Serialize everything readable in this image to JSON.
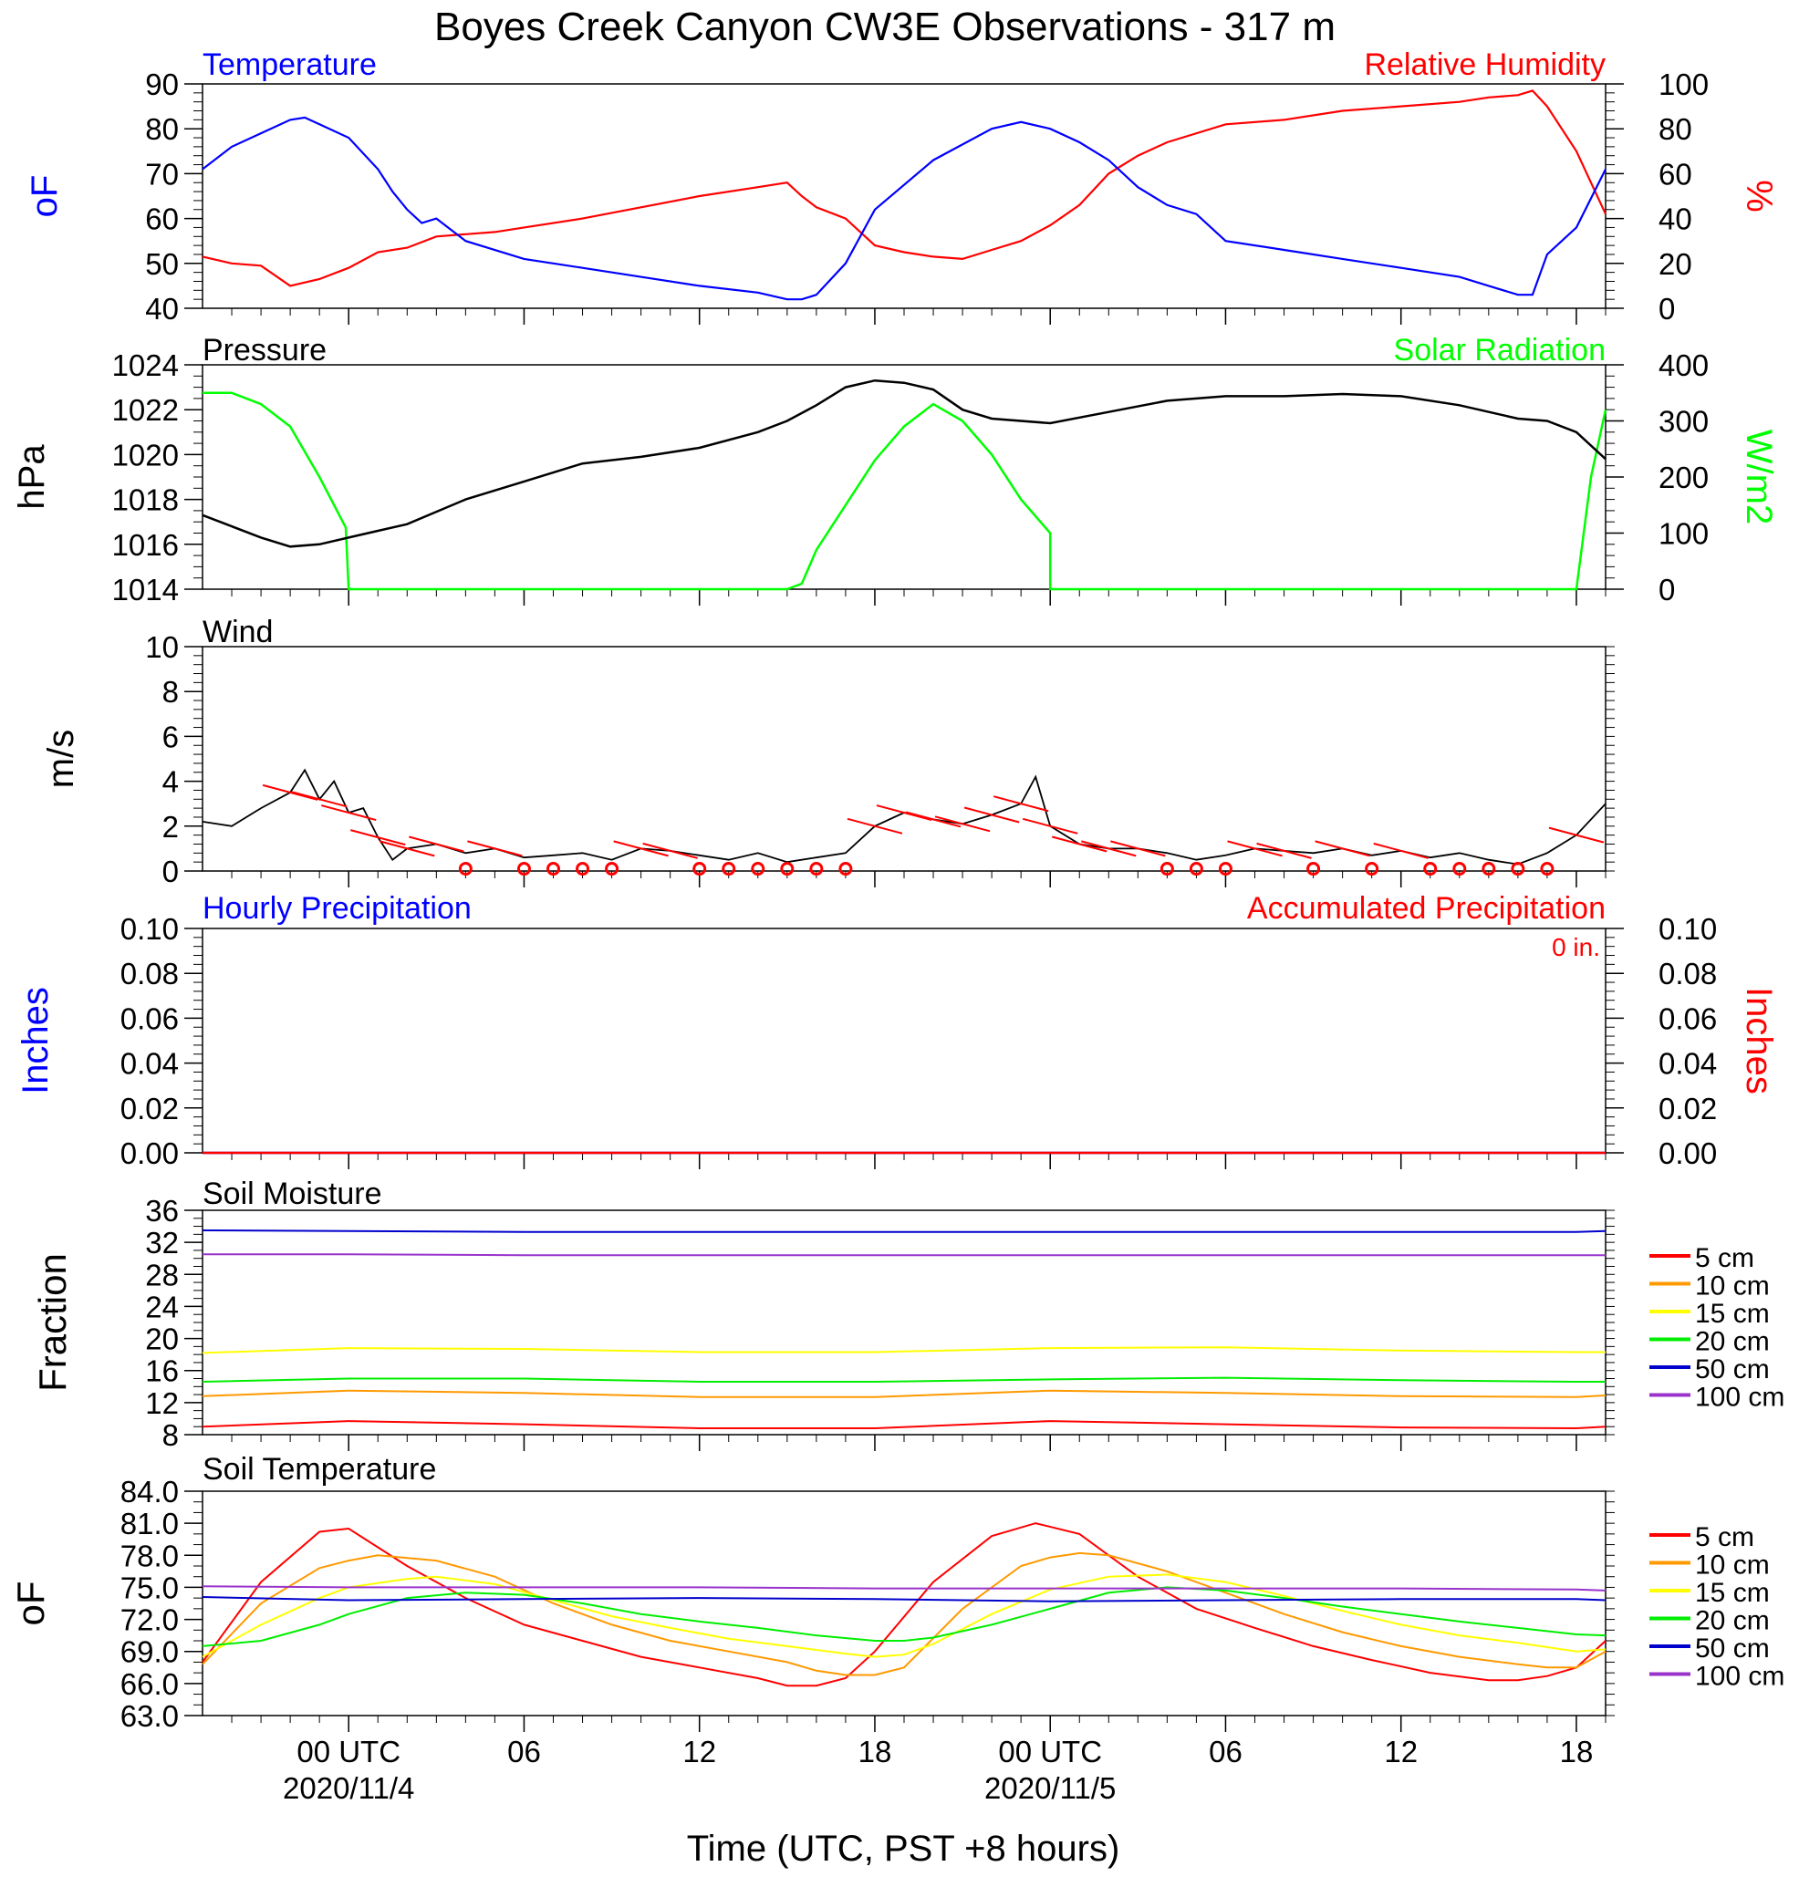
{
  "title": "Boyes Creek Canyon CW3E Observations - 317 m",
  "x_axis": {
    "label": "Time (UTC, PST +8 hours)",
    "ticks": [
      {
        "h": 0,
        "label": "00 UTC",
        "date": "2020/11/4"
      },
      {
        "h": 6,
        "label": "06",
        "date": ""
      },
      {
        "h": 12,
        "label": "12",
        "date": ""
      },
      {
        "h": 18,
        "label": "18",
        "date": ""
      },
      {
        "h": 24,
        "label": "00 UTC",
        "date": "2020/11/5"
      },
      {
        "h": 30,
        "label": "06",
        "date": ""
      },
      {
        "h": 36,
        "label": "12",
        "date": ""
      },
      {
        "h": 42,
        "label": "18",
        "date": ""
      }
    ],
    "range": [
      "2020/11/3 19 UTC",
      "2020/11/5 19 UTC"
    ]
  },
  "colors": {
    "temperature": "#0000ff",
    "humidity": "#ff0000",
    "pressure": "#000000",
    "solar": "#00ff00",
    "wind": "#000000",
    "wind_barb": "#ff0000",
    "hourly_precip": "#0000ff",
    "accum_precip": "#ff0000",
    "depth_5cm": "#ff0000",
    "depth_10cm": "#ff9900",
    "depth_15cm": "#ffff00",
    "depth_20cm": "#00ee00",
    "depth_50cm": "#0000cc",
    "depth_100cm": "#9933cc"
  },
  "chart_data": [
    {
      "type": "line",
      "panel": "temperature_humidity",
      "left_title": "Temperature",
      "right_title": "Relative Humidity",
      "left_unit": "oF",
      "right_unit": "%",
      "left_ticks": [
        "90",
        "80",
        "70",
        "60",
        "50",
        "40"
      ],
      "right_ticks": [
        "100",
        "80",
        "60",
        "40",
        "20",
        "0"
      ],
      "left_ylim": [
        40,
        90
      ],
      "right_ylim": [
        0,
        100
      ],
      "series": [
        {
          "name": "Temperature",
          "axis": "left",
          "x": [
            -5,
            -4,
            -3,
            -2,
            -1.5,
            -1,
            0,
            1,
            1.5,
            2,
            2.5,
            3,
            4,
            6,
            8,
            10,
            12,
            14,
            15,
            15.5,
            16,
            17,
            18,
            20,
            22,
            23,
            24,
            25,
            26,
            27,
            28,
            29,
            30,
            32,
            34,
            36,
            38,
            39,
            40,
            40.5,
            41,
            42,
            43
          ],
          "y": [
            71,
            76,
            79,
            82,
            82.5,
            81,
            78,
            71,
            66,
            62,
            59,
            60,
            55,
            51,
            49,
            47,
            45,
            43.5,
            42,
            42,
            43,
            50,
            62,
            73,
            80,
            81.5,
            80,
            77,
            73,
            67,
            63,
            61,
            55,
            53,
            51,
            49,
            47,
            45,
            43,
            43,
            52,
            58,
            71
          ]
        },
        {
          "name": "Relative Humidity",
          "axis": "right",
          "x": [
            -5,
            -4,
            -3,
            -2,
            -1,
            0,
            1,
            2,
            3,
            4,
            5,
            6,
            8,
            10,
            12,
            14,
            15,
            15.5,
            16,
            17,
            18,
            19,
            20,
            21,
            22,
            23,
            24,
            25,
            26,
            27,
            28,
            30,
            32,
            34,
            36,
            38,
            39,
            40,
            40.5,
            41,
            42,
            43
          ],
          "y": [
            23,
            20,
            19,
            10,
            13,
            18,
            25,
            27,
            32,
            33,
            34,
            36,
            40,
            45,
            50,
            54,
            56,
            50,
            45,
            40,
            28,
            25,
            23,
            22,
            26,
            30,
            37,
            46,
            60,
            68,
            74,
            82,
            84,
            88,
            90,
            92,
            94,
            95,
            97,
            90,
            70,
            42
          ]
        }
      ]
    },
    {
      "type": "line",
      "panel": "pressure_solar",
      "left_title": "Pressure",
      "right_title": "Solar Radiation",
      "left_unit": "hPa",
      "right_unit": "W/m2",
      "left_ticks": [
        "1024",
        "1022",
        "1020",
        "1018",
        "1016",
        "1014"
      ],
      "right_ticks": [
        "400",
        "300",
        "200",
        "100",
        "0"
      ],
      "left_ylim": [
        1014,
        1024
      ],
      "right_ylim": [
        0,
        400
      ],
      "series": [
        {
          "name": "Pressure",
          "axis": "left",
          "x": [
            -5,
            -4,
            -3,
            -2,
            -1,
            0,
            1,
            2,
            4,
            6,
            8,
            10,
            12,
            14,
            15,
            16,
            17,
            18,
            19,
            20,
            21,
            22,
            24,
            26,
            28,
            30,
            32,
            34,
            36,
            38,
            40,
            41,
            42,
            43
          ],
          "y": [
            1017.3,
            1016.8,
            1016.3,
            1015.9,
            1016.0,
            1016.3,
            1016.6,
            1016.9,
            1018.0,
            1018.8,
            1019.6,
            1019.9,
            1020.3,
            1021.0,
            1021.5,
            1022.2,
            1023.0,
            1023.3,
            1023.2,
            1022.9,
            1022.0,
            1021.6,
            1021.4,
            1021.9,
            1022.4,
            1022.6,
            1022.6,
            1022.7,
            1022.6,
            1022.2,
            1021.6,
            1021.5,
            1021.0,
            1019.8
          ]
        },
        {
          "name": "Solar Radiation",
          "axis": "right",
          "x": [
            -5,
            -4,
            -3,
            -2,
            -1,
            -0.1,
            0,
            15,
            15.5,
            16,
            17,
            18,
            19,
            20,
            21,
            22,
            23,
            24,
            24,
            42,
            42.5,
            43
          ],
          "y": [
            350,
            350,
            330,
            290,
            200,
            110,
            0,
            0,
            10,
            70,
            150,
            230,
            290,
            330,
            300,
            240,
            160,
            100,
            0,
            0,
            200,
            320
          ]
        }
      ]
    },
    {
      "type": "line",
      "panel": "wind",
      "title": "Wind",
      "unit": "m/s",
      "ticks": [
        "10",
        "8",
        "6",
        "4",
        "2",
        "0"
      ],
      "ylim": [
        0,
        10
      ],
      "series": [
        {
          "name": "Wind",
          "x": [
            -5,
            -4,
            -3,
            -2,
            -1.5,
            -1,
            -0.5,
            0,
            0.5,
            1,
            1.5,
            2,
            3,
            4,
            5,
            6,
            7,
            8,
            9,
            10,
            11,
            12,
            13,
            14,
            15,
            16,
            17,
            18,
            19,
            20,
            21,
            22,
            23,
            23.5,
            24,
            25,
            26,
            27,
            28,
            29,
            30,
            31,
            32,
            33,
            34,
            35,
            36,
            37,
            38,
            39,
            40,
            41,
            42,
            43
          ],
          "y": [
            2.2,
            2.0,
            2.8,
            3.5,
            4.5,
            3.2,
            4.0,
            2.6,
            2.8,
            1.5,
            0.5,
            1.0,
            1.2,
            0.8,
            1.0,
            0.6,
            0.7,
            0.8,
            0.5,
            1.0,
            0.9,
            0.7,
            0.5,
            0.8,
            0.4,
            0.6,
            0.8,
            2.0,
            2.6,
            2.3,
            2.1,
            2.5,
            3.0,
            4.2,
            2.0,
            1.2,
            1.0,
            1.0,
            0.8,
            0.5,
            0.7,
            1.0,
            0.9,
            0.8,
            1.0,
            0.7,
            0.9,
            0.6,
            0.8,
            0.5,
            0.3,
            0.8,
            1.6,
            3.0
          ]
        }
      ],
      "barbs_hours": [
        -2,
        -1,
        0,
        1,
        2,
        3,
        4,
        5,
        6,
        7,
        8,
        9,
        10,
        11,
        12,
        13,
        14,
        15,
        16,
        17,
        18,
        19,
        20,
        21,
        22,
        23,
        24,
        25,
        26,
        27,
        28,
        29,
        30,
        31,
        32,
        33,
        34,
        35,
        36,
        37,
        38,
        39,
        40,
        41,
        42
      ]
    },
    {
      "type": "line",
      "panel": "precipitation",
      "left_title": "Hourly Precipitation",
      "right_title": "Accumulated Precipitation",
      "accumulated_label": "0 in.",
      "left_unit": "Inches",
      "right_unit": "Inches",
      "left_ticks": [
        "0.10",
        "0.08",
        "0.06",
        "0.04",
        "0.02",
        "0.00"
      ],
      "right_ticks": [
        "0.10",
        "0.08",
        "0.06",
        "0.04",
        "0.02",
        "0.00"
      ],
      "ylim": [
        0,
        0.1
      ],
      "series": [
        {
          "name": "Hourly Precipitation",
          "x": [
            -5,
            43
          ],
          "y": [
            0,
            0
          ]
        },
        {
          "name": "Accumulated Precipitation",
          "x": [
            -5,
            43
          ],
          "y": [
            0,
            0
          ]
        }
      ]
    },
    {
      "type": "line",
      "panel": "soil_moisture",
      "title": "Soil Moisture",
      "unit": "Fraction",
      "ticks": [
        "36",
        "32",
        "28",
        "24",
        "20",
        "16",
        "12",
        "8"
      ],
      "ylim": [
        8,
        36
      ],
      "series": [
        {
          "name": "5 cm",
          "x": [
            -5,
            0,
            6,
            12,
            18,
            24,
            30,
            36,
            42,
            43
          ],
          "y": [
            9.0,
            9.7,
            9.3,
            8.8,
            8.8,
            9.7,
            9.3,
            8.9,
            8.8,
            9.0
          ]
        },
        {
          "name": "10 cm",
          "x": [
            -5,
            0,
            6,
            12,
            18,
            24,
            30,
            36,
            42,
            43
          ],
          "y": [
            12.8,
            13.5,
            13.2,
            12.7,
            12.7,
            13.5,
            13.2,
            12.8,
            12.7,
            12.9
          ]
        },
        {
          "name": "15 cm",
          "x": [
            -5,
            0,
            6,
            12,
            18,
            24,
            30,
            36,
            42,
            43
          ],
          "y": [
            18.2,
            18.8,
            18.7,
            18.3,
            18.3,
            18.8,
            18.9,
            18.5,
            18.3,
            18.3
          ]
        },
        {
          "name": "20 cm",
          "x": [
            -5,
            0,
            6,
            12,
            18,
            24,
            30,
            36,
            42,
            43
          ],
          "y": [
            14.6,
            15.0,
            15.0,
            14.6,
            14.6,
            14.9,
            15.1,
            14.8,
            14.6,
            14.6
          ]
        },
        {
          "name": "50 cm",
          "x": [
            -5,
            0,
            6,
            12,
            18,
            24,
            30,
            36,
            42,
            43
          ],
          "y": [
            33.5,
            33.4,
            33.3,
            33.3,
            33.3,
            33.3,
            33.3,
            33.3,
            33.3,
            33.4
          ]
        },
        {
          "name": "100 cm",
          "x": [
            -5,
            0,
            6,
            12,
            18,
            24,
            30,
            36,
            42,
            43
          ],
          "y": [
            30.5,
            30.5,
            30.4,
            30.4,
            30.4,
            30.4,
            30.4,
            30.4,
            30.4,
            30.4
          ]
        }
      ]
    },
    {
      "type": "line",
      "panel": "soil_temperature",
      "title": "Soil Temperature",
      "unit": "oF",
      "ticks": [
        "84.0",
        "81.0",
        "78.0",
        "75.0",
        "72.0",
        "69.0",
        "66.0",
        "63.0"
      ],
      "ylim": [
        63,
        84
      ],
      "series": [
        {
          "name": "5 cm",
          "x": [
            -5,
            -3,
            -1,
            0,
            2,
            4,
            6,
            8,
            10,
            12,
            14,
            15,
            16,
            17,
            18,
            20,
            22,
            23.5,
            25,
            27,
            29,
            31,
            33,
            35,
            37,
            39,
            40,
            41,
            42,
            43
          ],
          "y": [
            68,
            75.5,
            80.2,
            80.5,
            77,
            74,
            71.5,
            70,
            68.5,
            67.5,
            66.5,
            65.8,
            65.8,
            66.5,
            69,
            75.5,
            79.8,
            81,
            80,
            76,
            73,
            71.2,
            69.5,
            68.2,
            67,
            66.3,
            66.3,
            66.7,
            67.5,
            70
          ]
        },
        {
          "name": "10 cm",
          "x": [
            -5,
            -3,
            -1,
            0,
            1,
            3,
            5,
            7,
            9,
            11,
            13,
            15,
            16,
            17,
            18,
            19,
            21,
            23,
            24,
            25,
            26,
            28,
            30,
            32,
            34,
            36,
            38,
            40,
            41,
            42,
            43
          ],
          "y": [
            67.8,
            73.5,
            76.8,
            77.5,
            78,
            77.5,
            76,
            73.5,
            71.5,
            70,
            69,
            68,
            67.2,
            66.8,
            66.8,
            67.5,
            73,
            77,
            77.8,
            78.2,
            78,
            76.5,
            74.5,
            72.5,
            70.8,
            69.5,
            68.5,
            67.8,
            67.5,
            67.5,
            69
          ]
        },
        {
          "name": "15 cm",
          "x": [
            -5,
            -3,
            -1,
            0,
            2,
            3,
            5,
            7,
            9,
            11,
            13,
            15,
            17,
            18,
            19,
            20,
            22,
            24,
            26,
            28,
            30,
            32,
            34,
            36,
            38,
            40,
            42,
            43
          ],
          "y": [
            68.5,
            71.5,
            74,
            75,
            75.8,
            76,
            75.3,
            73.8,
            72.3,
            71.2,
            70.2,
            69.5,
            68.8,
            68.5,
            68.7,
            69.7,
            72.5,
            74.8,
            76,
            76.2,
            75.5,
            74.2,
            72.8,
            71.5,
            70.5,
            69.8,
            69,
            69.2
          ]
        },
        {
          "name": "20 cm",
          "x": [
            -5,
            -3,
            -1,
            0,
            2,
            4,
            6,
            8,
            10,
            12,
            14,
            16,
            18,
            19,
            20,
            22,
            24,
            26,
            28,
            30,
            32,
            34,
            36,
            38,
            40,
            42,
            43
          ],
          "y": [
            69.5,
            70,
            71.5,
            72.5,
            74,
            74.5,
            74.3,
            73.5,
            72.5,
            71.8,
            71.2,
            70.5,
            70,
            70,
            70.3,
            71.5,
            73,
            74.5,
            75,
            74.7,
            74,
            73.2,
            72.5,
            71.8,
            71.2,
            70.6,
            70.5
          ]
        },
        {
          "name": "50 cm",
          "x": [
            -5,
            0,
            6,
            12,
            18,
            24,
            30,
            36,
            42,
            43
          ],
          "y": [
            74.1,
            73.8,
            73.9,
            74.0,
            73.9,
            73.7,
            73.8,
            73.9,
            73.9,
            73.8
          ]
        },
        {
          "name": "100 cm",
          "x": [
            -5,
            0,
            6,
            12,
            18,
            24,
            30,
            36,
            42,
            43
          ],
          "y": [
            75.1,
            75.0,
            75.0,
            75.0,
            74.9,
            74.9,
            74.9,
            74.9,
            74.8,
            74.7
          ]
        }
      ]
    }
  ],
  "legend_labels": [
    "5 cm",
    "10 cm",
    "15 cm",
    "20 cm",
    "50 cm",
    "100 cm"
  ]
}
